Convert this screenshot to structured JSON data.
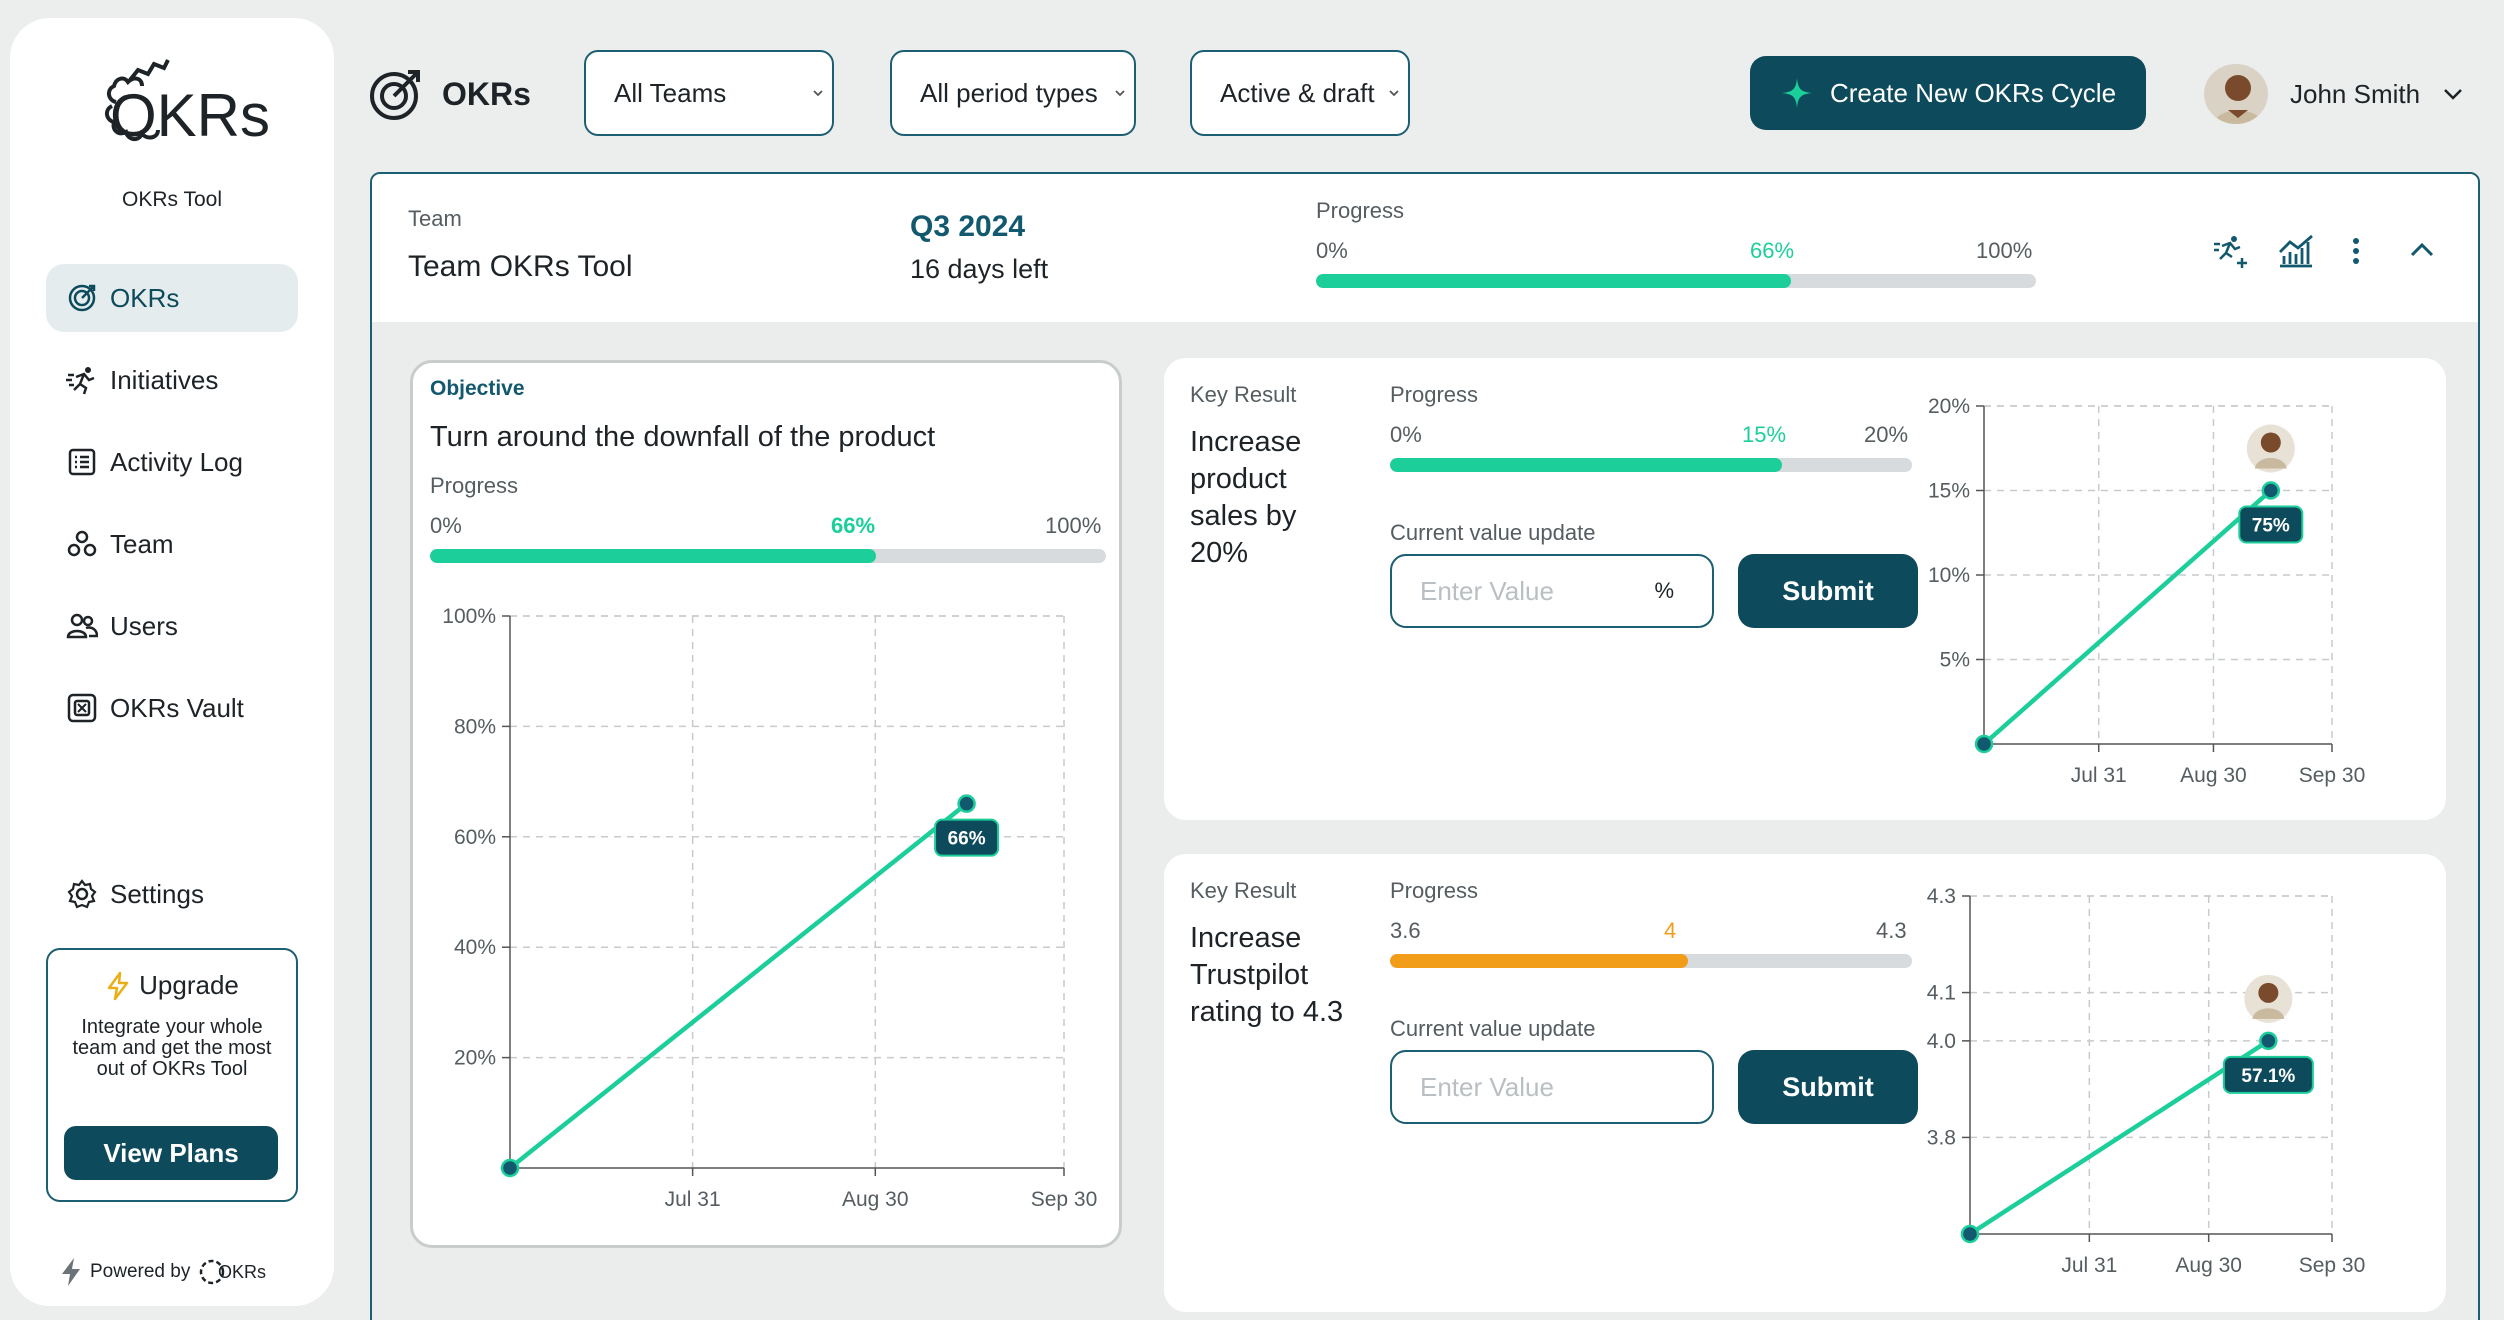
{
  "sidebar": {
    "logo_text": "OKRs",
    "logo_subtitle": "OKRs Tool",
    "items": [
      {
        "label": "OKRs",
        "icon": "okrs-target-icon"
      },
      {
        "label": "Initiatives",
        "icon": "running-person-icon"
      },
      {
        "label": "Activity Log",
        "icon": "list-icon"
      },
      {
        "label": "Team",
        "icon": "team-icon"
      },
      {
        "label": "Users",
        "icon": "users-icon"
      },
      {
        "label": "OKRs Vault",
        "icon": "vault-icon"
      },
      {
        "label": "Settings",
        "icon": "gear-icon"
      }
    ],
    "upgrade": {
      "title": "Upgrade",
      "text": "Integrate your whole team and get the most out of OKRs Tool",
      "button": "View Plans"
    },
    "powered_by": "Powered by",
    "powered_logo": "OKRs"
  },
  "header": {
    "title": "OKRs",
    "filters": [
      "All Teams",
      "All period types",
      "Active & draft"
    ],
    "create_button": "Create New OKRs Cycle",
    "user_name": "John Smith"
  },
  "cycle": {
    "team_label": "Team",
    "team_name": "Team OKRs Tool",
    "period": "Q3 2024",
    "days_left": "16 days left",
    "progress_label": "Progress",
    "progress_min": "0%",
    "progress_value": "66%",
    "progress_max": "100%",
    "progress_fraction": 0.66
  },
  "objective": {
    "label": "Objective",
    "title": "Turn around the downfall of the product",
    "progress_label": "Progress",
    "progress_min": "0%",
    "progress_value": "66%",
    "progress_max": "100%",
    "progress_fraction": 0.66
  },
  "key_results": [
    {
      "label": "Key Result",
      "title": "Increase product sales by 20%",
      "progress_label": "Progress",
      "progress_min": "0%",
      "progress_value": "15%",
      "progress_max": "20%",
      "progress_fraction": 0.75,
      "bar_color": "#1ccf9a",
      "update_label": "Current value update",
      "input_placeholder": "Enter Value",
      "input_unit": "%",
      "submit": "Submit"
    },
    {
      "label": "Key Result",
      "title": "Increase Trustpilot rating to 4.3",
      "progress_label": "Progress",
      "progress_min": "3.6",
      "progress_value": "4",
      "progress_max": "4.3",
      "progress_fraction": 0.571,
      "bar_color": "#f29d1a",
      "update_label": "Current value update",
      "input_placeholder": "Enter Value",
      "input_unit": "",
      "submit": "Submit"
    }
  ],
  "chart_data": [
    {
      "type": "line",
      "x_ticks": [
        "Jul 31",
        "Aug 30",
        "Sep 30"
      ],
      "y_ticks": [
        "20%",
        "40%",
        "60%",
        "80%",
        "100%"
      ],
      "ylim": [
        0,
        100
      ],
      "points": [
        {
          "x": "Jul 1",
          "y": 0
        },
        {
          "x": "Sep 14",
          "y": 66
        }
      ],
      "marker_label": "66%",
      "grid": true
    },
    {
      "type": "line",
      "x_ticks": [
        "Jul 31",
        "Aug 30",
        "Sep 30"
      ],
      "y_ticks": [
        "5%",
        "10%",
        "15%",
        "20%"
      ],
      "ylim": [
        0,
        20
      ],
      "points": [
        {
          "x": "Jul 1",
          "y": 0
        },
        {
          "x": "Sep 14",
          "y": 15
        }
      ],
      "marker_label": "75%",
      "grid": true
    },
    {
      "type": "line",
      "x_ticks": [
        "Jul 31",
        "Aug 30",
        "Sep 30"
      ],
      "y_ticks": [
        "3.8",
        "4.0",
        "4.1",
        "4.3"
      ],
      "ylim": [
        3.6,
        4.3
      ],
      "points": [
        {
          "x": "Jul 1",
          "y": 3.6
        },
        {
          "x": "Sep 14",
          "y": 4.0
        }
      ],
      "marker_label": "57.1%",
      "grid": true
    }
  ]
}
